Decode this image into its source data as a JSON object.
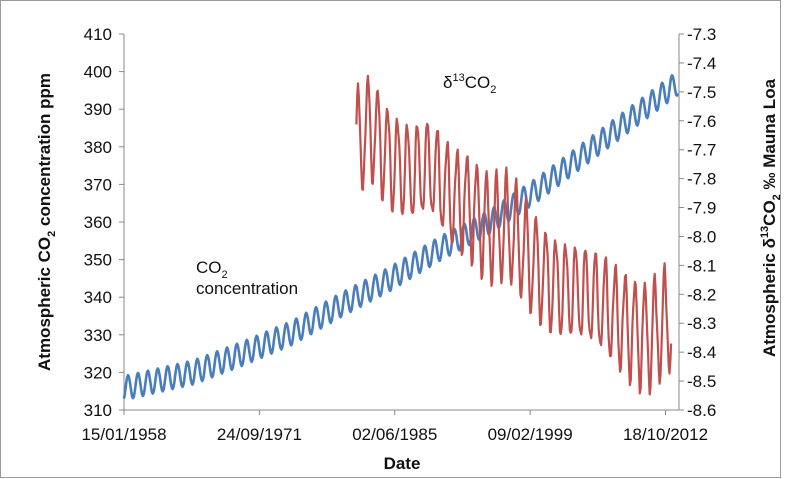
{
  "chart_data": {
    "type": "line",
    "xlabel": "Date",
    "ylabel_left": {
      "prefix": "Atmospheric CO",
      "sub": "2",
      "suffix": " concentration ppm"
    },
    "ylabel_right": {
      "prefix": "Atmospheric δ",
      "sup": "13",
      "mid": "CO",
      "sub": "2",
      "suffix": " ‰ Mauna Loa"
    },
    "x_range": [
      "1958-01-15",
      "2014-03-01"
    ],
    "x_ticks": [
      {
        "date": "1958-01-15",
        "label": "15/01/1958"
      },
      {
        "date": "1971-09-24",
        "label": "24/09/1971"
      },
      {
        "date": "1985-06-02",
        "label": "02/06/1985"
      },
      {
        "date": "1999-02-09",
        "label": "09/02/1999"
      },
      {
        "date": "2012-10-18",
        "label": "18/10/2012"
      }
    ],
    "ylim_left": [
      310,
      410
    ],
    "yticks_left": [
      "310",
      "320",
      "330",
      "340",
      "350",
      "360",
      "370",
      "380",
      "390",
      "400",
      "410"
    ],
    "ylim_right": [
      -8.6,
      -7.3
    ],
    "yticks_right": [
      "-8.6",
      "-8.5",
      "-8.4",
      "-8.3",
      "-8.2",
      "-8.1",
      "-8.0",
      "-7.9",
      "-7.8",
      "-7.7",
      "-7.6",
      "-7.5",
      "-7.4",
      "-7.3"
    ],
    "series": [
      {
        "name": "CO₂ concentration",
        "label": {
          "line1_main": "CO",
          "line1_sub": "2",
          "line2": "concentration"
        },
        "axis": "left",
        "color": "#4a7ebb",
        "sampling": "monthly",
        "points": [
          [
            "1958-01-15",
            315.8
          ],
          [
            "1965-01-15",
            320.0
          ],
          [
            "1970-01-15",
            325.0
          ],
          [
            "1975-01-15",
            330.5
          ],
          [
            "1980-01-15",
            338.0
          ],
          [
            "1985-01-15",
            345.0
          ],
          [
            "1990-01-15",
            353.0
          ],
          [
            "1995-01-15",
            360.0
          ],
          [
            "2000-01-15",
            369.0
          ],
          [
            "2005-01-15",
            379.0
          ],
          [
            "2010-01-15",
            389.0
          ],
          [
            "2014-01-15",
            397.0
          ]
        ],
        "seasonal_amplitude_ppm": 3.2
      },
      {
        "name": "δ¹³CO₂",
        "label": {
          "main": "δ",
          "sup": "13",
          "mid": "CO",
          "sub": "2"
        },
        "axis": "right",
        "color": "#c0504d",
        "sampling": "monthly",
        "points": [
          [
            "1981-07-01",
            -7.7
          ],
          [
            "1983-01-01",
            -7.62
          ],
          [
            "1985-01-01",
            -7.72
          ],
          [
            "1987-01-01",
            -7.78
          ],
          [
            "1989-01-01",
            -7.78
          ],
          [
            "1991-01-01",
            -7.86
          ],
          [
            "1993-01-01",
            -7.88
          ],
          [
            "1995-01-01",
            -7.97
          ],
          [
            "1997-01-01",
            -7.99
          ],
          [
            "1999-01-01",
            -8.08
          ],
          [
            "2001-01-01",
            -8.14
          ],
          [
            "2003-01-01",
            -8.18
          ],
          [
            "2005-01-01",
            -8.22
          ],
          [
            "2007-01-01",
            -8.26
          ],
          [
            "2009-01-01",
            -8.3
          ],
          [
            "2011-01-01",
            -8.34
          ],
          [
            "2013-06-01",
            -8.3
          ]
        ],
        "seasonal_amplitude_permil": 0.17
      }
    ]
  }
}
